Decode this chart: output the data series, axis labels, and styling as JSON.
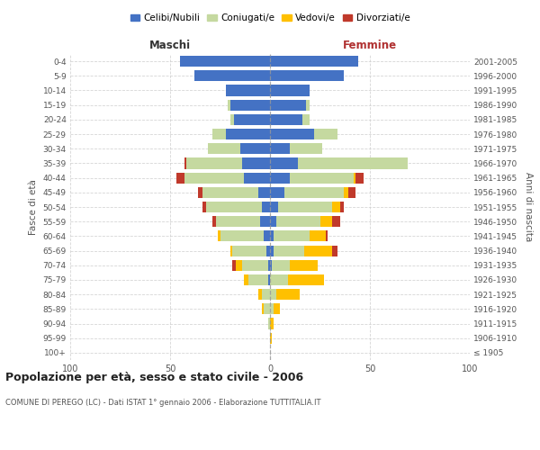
{
  "age_groups": [
    "100+",
    "95-99",
    "90-94",
    "85-89",
    "80-84",
    "75-79",
    "70-74",
    "65-69",
    "60-64",
    "55-59",
    "50-54",
    "45-49",
    "40-44",
    "35-39",
    "30-34",
    "25-29",
    "20-24",
    "15-19",
    "10-14",
    "5-9",
    "0-4"
  ],
  "birth_years": [
    "≤ 1905",
    "1906-1910",
    "1911-1915",
    "1916-1920",
    "1921-1925",
    "1926-1930",
    "1931-1935",
    "1936-1940",
    "1941-1945",
    "1946-1950",
    "1951-1955",
    "1956-1960",
    "1961-1965",
    "1966-1970",
    "1971-1975",
    "1976-1980",
    "1981-1985",
    "1986-1990",
    "1991-1995",
    "1996-2000",
    "2001-2005"
  ],
  "male": {
    "celibi": [
      0,
      0,
      0,
      0,
      0,
      1,
      1,
      2,
      3,
      5,
      4,
      6,
      13,
      14,
      15,
      22,
      18,
      20,
      22,
      38,
      45
    ],
    "coniugati": [
      0,
      0,
      1,
      3,
      4,
      10,
      13,
      17,
      22,
      22,
      28,
      28,
      30,
      28,
      16,
      7,
      2,
      1,
      0,
      0,
      0
    ],
    "vedovi": [
      0,
      0,
      0,
      1,
      2,
      2,
      3,
      1,
      1,
      0,
      0,
      0,
      0,
      0,
      0,
      0,
      0,
      0,
      0,
      0,
      0
    ],
    "divorziati": [
      0,
      0,
      0,
      0,
      0,
      0,
      2,
      0,
      0,
      2,
      2,
      2,
      4,
      1,
      0,
      0,
      0,
      0,
      0,
      0,
      0
    ]
  },
  "female": {
    "nubili": [
      0,
      0,
      0,
      0,
      0,
      0,
      1,
      2,
      2,
      3,
      4,
      7,
      10,
      14,
      10,
      22,
      16,
      18,
      20,
      37,
      44
    ],
    "coniugate": [
      0,
      0,
      0,
      2,
      3,
      9,
      9,
      15,
      18,
      22,
      27,
      30,
      32,
      55,
      16,
      12,
      4,
      2,
      0,
      0,
      0
    ],
    "vedove": [
      0,
      1,
      2,
      3,
      12,
      18,
      14,
      14,
      8,
      6,
      4,
      2,
      1,
      0,
      0,
      0,
      0,
      0,
      0,
      0,
      0
    ],
    "divorziate": [
      0,
      0,
      0,
      0,
      0,
      0,
      0,
      3,
      1,
      4,
      2,
      4,
      4,
      0,
      0,
      0,
      0,
      0,
      0,
      0,
      0
    ]
  },
  "colors": {
    "celibi": "#4472c4",
    "coniugati": "#c5d9a0",
    "vedovi": "#ffc000",
    "divorziati": "#c0392b"
  },
  "xlim": 100,
  "title": "Popolazione per età, sesso e stato civile - 2006",
  "subtitle": "COMUNE DI PEREGO (LC) - Dati ISTAT 1° gennaio 2006 - Elaborazione TUTTITALIA.IT",
  "ylabel_left": "Fasce di età",
  "ylabel_right": "Anni di nascita",
  "xlabel_maschi": "Maschi",
  "xlabel_femmine": "Femmine",
  "legend_labels": [
    "Celibi/Nubili",
    "Coniugati/e",
    "Vedovi/e",
    "Divorziati/e"
  ],
  "bg_color": "#ffffff",
  "grid_color": "#cccccc",
  "tick_color": "#555555"
}
